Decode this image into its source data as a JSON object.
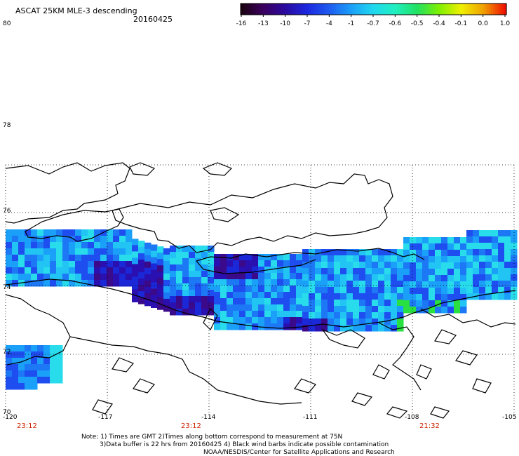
{
  "header": {
    "title": "ASCAT 25KM MLE-3 descending",
    "date": "20160425"
  },
  "colorbar": {
    "labels": [
      "-16",
      "-13",
      "-10",
      "-7",
      "-4",
      "-1",
      "-0.7",
      "-0.6",
      "-0.5",
      "-0.4",
      "-0.1",
      "0.0",
      "1.0"
    ],
    "colors": [
      "#1a0010",
      "#3c0060",
      "#2a0aa0",
      "#1c28e0",
      "#1e5cf0",
      "#1aa0f8",
      "#20d8f0",
      "#20f0c0",
      "#20e060",
      "#80f000",
      "#f0f000",
      "#f0a000",
      "#f01000"
    ]
  },
  "map": {
    "lat_labels": [
      {
        "text": "80"
      },
      {
        "text": "78"
      },
      {
        "text": "76"
      },
      {
        "text": "74"
      },
      {
        "text": "72"
      },
      {
        "text": "70"
      }
    ],
    "lon_labels": [
      {
        "text": "-120"
      },
      {
        "text": "-117"
      },
      {
        "text": "-114"
      },
      {
        "text": "-111"
      },
      {
        "text": "-108"
      },
      {
        "text": "-105"
      }
    ],
    "time_labels": [
      {
        "text": "23:12"
      },
      {
        "text": "23:12"
      },
      {
        "text": "21:32"
      }
    ],
    "time_color": "#cc2200",
    "grid": "dotted",
    "note_lines": [
      "Note: 1) Times are GMT 2)Times along bottom correspond to measurement at 75N",
      "3)Data buffer is 22 hrs from 20160425 4) Black wind barbs indicate possible contamination",
      "NOAA/NESDIS/Center for Satellite Applications and Research"
    ]
  }
}
